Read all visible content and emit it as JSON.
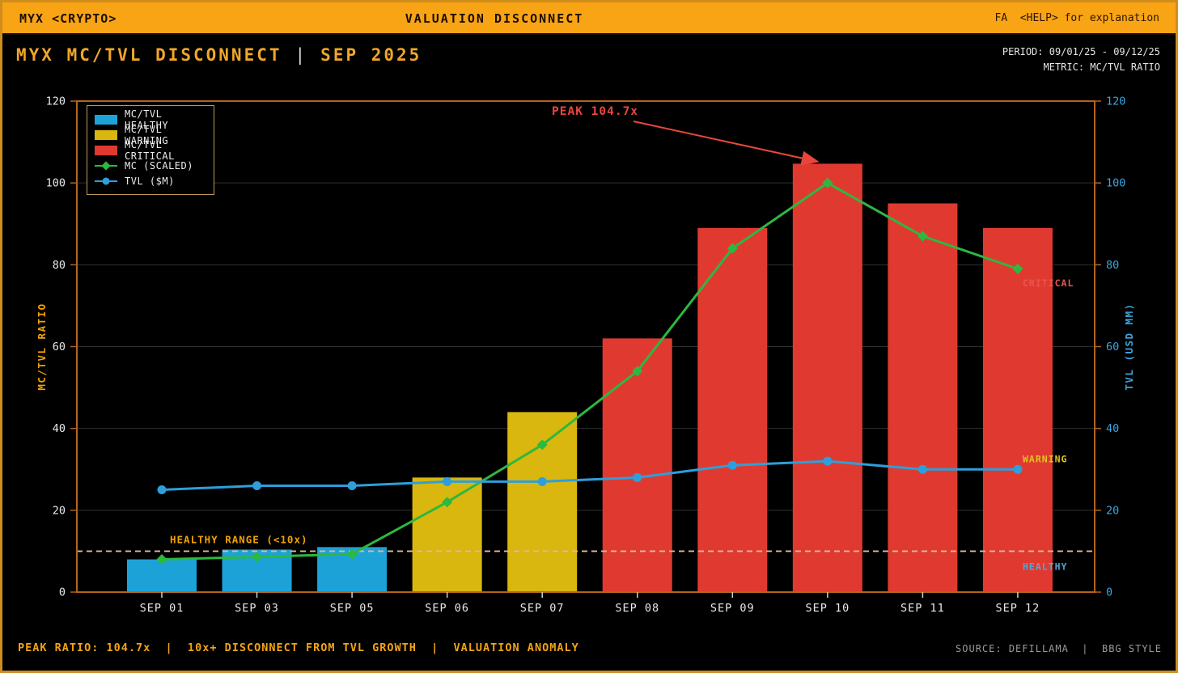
{
  "header": {
    "left": "MYX <CRYPTO>",
    "center": "VALUATION DISCONNECT",
    "right": "FA  <HELP> for explanation"
  },
  "subheader": {
    "title_left": "MYX MC/TVL DISCONNECT",
    "title_sep": "|",
    "title_right": "SEP 2025",
    "period": "PERIOD: 09/01/25 - 09/12/25",
    "metric": "METRIC: MC/TVL RATIO"
  },
  "legend": {
    "items": [
      {
        "label": "MC/TVL HEALTHY",
        "type": "swatch",
        "color": "#1da2d8"
      },
      {
        "label": "MC/TVL WARNING",
        "type": "swatch",
        "color": "#d9b70e"
      },
      {
        "label": "MC/TVL CRITICAL",
        "type": "swatch",
        "color": "#e03a30"
      },
      {
        "label": "MC (SCALED)",
        "type": "line-diamond",
        "color": "#2db83f"
      },
      {
        "label": "TVL ($M)",
        "type": "line-circle",
        "color": "#2d9fdc"
      }
    ]
  },
  "chart_data": {
    "type": "bar",
    "title": "MYX MC/TVL DISCONNECT | SEP 2025",
    "categories": [
      "SEP 01",
      "SEP 03",
      "SEP 05",
      "SEP 06",
      "SEP 07",
      "SEP 08",
      "SEP 09",
      "SEP 10",
      "SEP 11",
      "SEP 12"
    ],
    "bar_series": {
      "name": "MC/TVL RATIO",
      "values": [
        8,
        10.4,
        11,
        28,
        44,
        62,
        89,
        104.7,
        95,
        89
      ],
      "statuses": [
        "healthy",
        "healthy",
        "healthy",
        "warning",
        "warning",
        "critical",
        "critical",
        "critical",
        "critical",
        "critical"
      ],
      "status_colors": {
        "healthy": "#1da2d8",
        "warning": "#d9b70e",
        "critical": "#e03a30"
      }
    },
    "line_series": [
      {
        "name": "MC (SCALED)",
        "marker": "diamond",
        "color": "#2db83f",
        "values": [
          8,
          8.6,
          9.3,
          22,
          36,
          54,
          84,
          100,
          87,
          79
        ]
      },
      {
        "name": "TVL ($M)",
        "marker": "circle",
        "color": "#2d9fdc",
        "values": [
          25,
          26,
          26,
          27,
          27,
          28,
          31,
          32,
          30,
          30
        ]
      }
    ],
    "ylim": [
      0,
      120
    ],
    "yticks": [
      0,
      20,
      40,
      60,
      80,
      100,
      120
    ],
    "ylabel_left": "MC/TVL RATIO",
    "ylabel_right": "TVL (USD MM)",
    "grid": "horizontal",
    "legend_position": "upper-left",
    "reference_line": {
      "value": 10,
      "label": "HEALTHY RANGE (<10x)",
      "color": "#deb89a",
      "label_color": "#f0a202"
    },
    "zone_labels": [
      {
        "text": "CRITICAL",
        "value": 75.5,
        "color": "#e8554d"
      },
      {
        "text": "WARNING",
        "value": 32.5,
        "color": "#e0c41e"
      },
      {
        "text": "HEALTHY",
        "value": 6.2,
        "color": "#4aa8d8"
      }
    ],
    "annotation": {
      "text": "PEAK 104.7x",
      "color": "#e8463c",
      "target_category": "SEP 10",
      "target_value": 104.7
    }
  },
  "footer": {
    "left": "PEAK RATIO: 104.7x  |  10x+ DISCONNECT FROM TVL GROWTH  |  VALUATION ANOMALY",
    "right": "SOURCE: DEFILLAMA  |  BBG STYLE"
  }
}
